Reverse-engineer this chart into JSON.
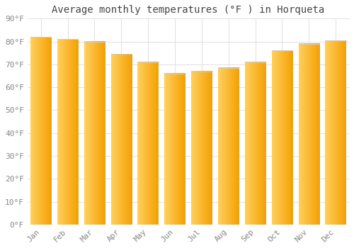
{
  "title": "Average monthly temperatures (°F ) in Horqueta",
  "months": [
    "Jan",
    "Feb",
    "Mar",
    "Apr",
    "May",
    "Jun",
    "Jul",
    "Aug",
    "Sep",
    "Oct",
    "Nov",
    "Dec"
  ],
  "values": [
    82,
    81,
    80,
    74.5,
    71,
    66,
    67,
    68.5,
    71,
    76,
    79,
    80.5
  ],
  "bar_color_left": "#FFD060",
  "bar_color_right": "#F5A000",
  "ylim": [
    0,
    90
  ],
  "yticks": [
    0,
    10,
    20,
    30,
    40,
    50,
    60,
    70,
    80,
    90
  ],
  "ytick_labels": [
    "0°F",
    "10°F",
    "20°F",
    "30°F",
    "40°F",
    "50°F",
    "60°F",
    "70°F",
    "80°F",
    "90°F"
  ],
  "background_color": "#FFFFFF",
  "grid_color": "#E0E0E0",
  "title_fontsize": 10,
  "tick_fontsize": 8,
  "font_family": "monospace"
}
